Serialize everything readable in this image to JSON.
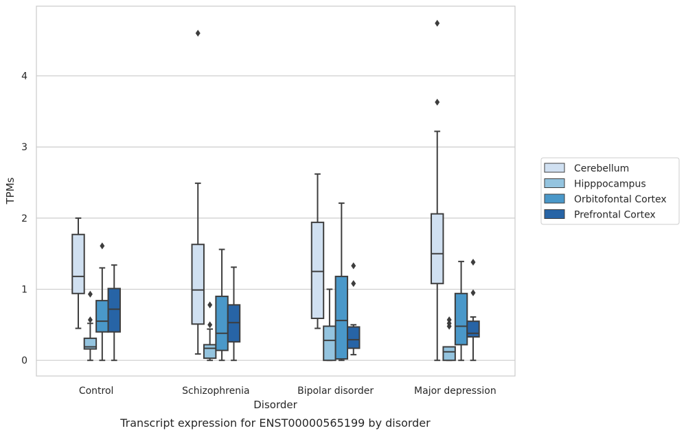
{
  "chart_data": {
    "type": "box",
    "title": "",
    "caption": "Transcript expression for ENST00000565199 by disorder",
    "xlabel": "Disorder",
    "ylabel": "TPMs",
    "ylim": [
      -0.22,
      4.98
    ],
    "yticks": [
      0,
      1,
      2,
      3,
      4
    ],
    "grid": "horizontal",
    "legend_position": "right",
    "categories": [
      "Control",
      "Schizophrenia",
      "Bipolar disorder",
      "Major depression"
    ],
    "series": [
      {
        "name": "Cerebellum",
        "color": "#d0e0f1",
        "boxes": [
          {
            "whislo": 0.45,
            "q1": 0.94,
            "med": 1.18,
            "q3": 1.77,
            "whishi": 2.0,
            "fliers": []
          },
          {
            "whislo": 0.09,
            "q1": 0.51,
            "med": 0.99,
            "q3": 1.63,
            "whishi": 2.49,
            "fliers": [
              4.6
            ]
          },
          {
            "whislo": 0.45,
            "q1": 0.59,
            "med": 1.25,
            "q3": 1.94,
            "whishi": 2.62,
            "fliers": []
          },
          {
            "whislo": 0.0,
            "q1": 1.08,
            "med": 1.5,
            "q3": 2.06,
            "whishi": 3.22,
            "fliers": [
              3.63,
              4.74
            ]
          }
        ]
      },
      {
        "name": "Hipppocampus",
        "color": "#94c4df",
        "boxes": [
          {
            "whislo": 0.0,
            "q1": 0.16,
            "med": 0.19,
            "q3": 0.31,
            "whishi": 0.52,
            "fliers": [
              0.57,
              0.93
            ]
          },
          {
            "whislo": 0.0,
            "q1": 0.03,
            "med": 0.17,
            "q3": 0.22,
            "whishi": 0.44,
            "fliers": [
              0.5,
              0.78
            ]
          },
          {
            "whislo": 0.0,
            "q1": 0.0,
            "med": 0.28,
            "q3": 0.48,
            "whishi": 1.0,
            "fliers": []
          },
          {
            "whislo": 0.0,
            "q1": 0.0,
            "med": 0.12,
            "q3": 0.19,
            "whishi": 0.19,
            "fliers": [
              0.48,
              0.52,
              0.57
            ]
          }
        ]
      },
      {
        "name": "Orbitofontal Cortex",
        "color": "#4a98c9",
        "boxes": [
          {
            "whislo": 0.0,
            "q1": 0.4,
            "med": 0.55,
            "q3": 0.84,
            "whishi": 1.3,
            "fliers": [
              1.61
            ]
          },
          {
            "whislo": 0.0,
            "q1": 0.14,
            "med": 0.38,
            "q3": 0.9,
            "whishi": 1.56,
            "fliers": []
          },
          {
            "whislo": 0.0,
            "q1": 0.02,
            "med": 0.56,
            "q3": 1.18,
            "whishi": 2.21,
            "fliers": []
          },
          {
            "whislo": 0.0,
            "q1": 0.22,
            "med": 0.48,
            "q3": 0.94,
            "whishi": 1.39,
            "fliers": []
          }
        ]
      },
      {
        "name": "Prefrontal Cortex",
        "color": "#2764a6",
        "boxes": [
          {
            "whislo": 0.0,
            "q1": 0.4,
            "med": 0.72,
            "q3": 1.01,
            "whishi": 1.34,
            "fliers": []
          },
          {
            "whislo": 0.0,
            "q1": 0.26,
            "med": 0.53,
            "q3": 0.78,
            "whishi": 1.31,
            "fliers": []
          },
          {
            "whislo": 0.08,
            "q1": 0.17,
            "med": 0.29,
            "q3": 0.47,
            "whishi": 0.5,
            "fliers": [
              1.08,
              1.33
            ]
          },
          {
            "whislo": 0.0,
            "q1": 0.33,
            "med": 0.38,
            "q3": 0.55,
            "whishi": 0.61,
            "fliers": [
              0.95,
              1.38
            ]
          }
        ]
      }
    ]
  }
}
